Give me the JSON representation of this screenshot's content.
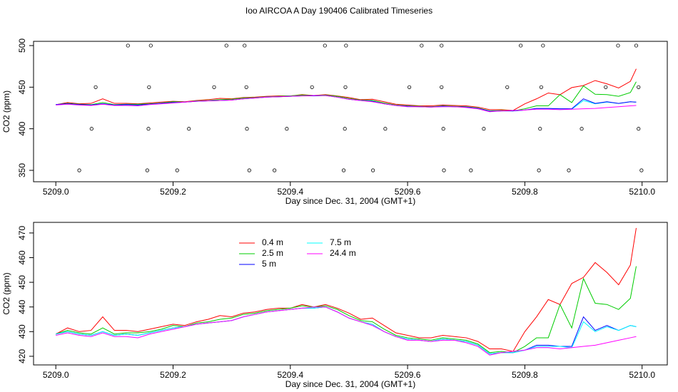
{
  "chart_data": [
    {
      "type": "line",
      "title": "Ioo AIRCOA A  Day 190406  Calibrated Timeseries",
      "xlabel": "Day since Dec. 31, 2004 (GMT+1)",
      "ylabel": "CO2 (ppm)",
      "xlim": [
        5208.962,
        5210.043
      ],
      "ylim": [
        336.3,
        505.1
      ],
      "xticks": [
        {
          "value": 5209,
          "label": "5209.0"
        },
        5209.2,
        5209.4,
        5209.6,
        5209.8,
        {
          "value": 5210,
          "label": "5210.0"
        }
      ],
      "yticks": [
        350,
        400,
        450,
        500
      ],
      "x": [
        5209,
        5209.02,
        5209.04,
        5209.06,
        5209.08,
        5209.1,
        5209.12,
        5209.14,
        5209.16,
        5209.18,
        5209.2,
        5209.22,
        5209.24,
        5209.26,
        5209.28,
        5209.3,
        5209.32,
        5209.34,
        5209.36,
        5209.38,
        5209.4,
        5209.42,
        5209.44,
        5209.46,
        5209.48,
        5209.5,
        5209.52,
        5209.54,
        5209.56,
        5209.58,
        5209.6,
        5209.62,
        5209.64,
        5209.66,
        5209.68,
        5209.7,
        5209.72,
        5209.74,
        5209.76,
        5209.78,
        5209.8,
        5209.82,
        5209.84,
        5209.86,
        5209.88,
        5209.9,
        5209.92,
        5209.94,
        5209.96,
        5209.98,
        5209.99
      ],
      "series": [
        {
          "color": "#ff0000",
          "values": [
            429,
            431.5,
            430,
            430.5,
            436,
            430.5,
            430.5,
            430,
            431,
            432,
            433,
            432.5,
            434,
            435,
            436.5,
            436,
            437.5,
            438,
            439,
            439.5,
            439.5,
            441,
            440,
            441,
            439.5,
            437.5,
            435,
            435.5,
            432.5,
            429.5,
            428.5,
            427.5,
            427.5,
            428.5,
            428,
            427.5,
            426,
            423,
            423,
            422,
            430,
            436,
            443,
            441,
            449.5,
            452,
            458,
            454,
            449,
            457,
            472
          ]
        },
        {
          "color": "#00cc00",
          "values": [
            429,
            430.5,
            429.5,
            429,
            431.5,
            429,
            429.5,
            429.5,
            430,
            431,
            432.5,
            432,
            433.5,
            434,
            435,
            435.5,
            437,
            437.5,
            438.5,
            439,
            439.5,
            440.5,
            440,
            440.5,
            439,
            436.5,
            434.5,
            434,
            431,
            428.5,
            427.5,
            427,
            426.5,
            427.5,
            427,
            426.5,
            425,
            421.5,
            422,
            421.5,
            424,
            427.5,
            427.5,
            441,
            431.5,
            451.5,
            441.5,
            441,
            439,
            443.5,
            456.5
          ]
        },
        {
          "color": "#00ffff",
          "values": [
            429,
            430,
            429,
            428.5,
            430,
            428.5,
            429,
            428.5,
            429.5,
            430.5,
            431.5,
            432,
            433,
            433.5,
            434,
            434.5,
            436,
            437,
            438,
            438.5,
            439,
            439.5,
            439.5,
            440,
            438,
            435.5,
            434,
            433,
            430,
            428,
            427,
            426.5,
            426,
            427,
            426.5,
            426,
            424.5,
            421,
            421.5,
            421.5,
            422.5,
            424,
            424,
            424,
            423.5,
            434,
            430,
            432,
            430.5,
            432.5,
            432
          ]
        },
        {
          "color": "#0000ff",
          "values": [
            429,
            430,
            429,
            428.5,
            430,
            428.5,
            429,
            428.5,
            429.5,
            430.5,
            431.5,
            432,
            433,
            433.5,
            434,
            434.5,
            436,
            437,
            438,
            438.5,
            439,
            439.5,
            439.5,
            440,
            438,
            435.5,
            434,
            433,
            430,
            428,
            427,
            426.5,
            426,
            427,
            426.5,
            426,
            424.5,
            421,
            421.5,
            421.5,
            422.5,
            424.5,
            424.5,
            424,
            424,
            436,
            430.5,
            432.5,
            430.5,
            432.5,
            432
          ]
        },
        {
          "color": "#ff00ff",
          "values": [
            428.5,
            429.5,
            428.5,
            428,
            429.5,
            428,
            428,
            427.5,
            429,
            430,
            431,
            432,
            433,
            433.5,
            434,
            434.5,
            436,
            437,
            438,
            438.5,
            439,
            439.5,
            440,
            440,
            438,
            435.5,
            434,
            432.5,
            430,
            428,
            426.5,
            426.5,
            426,
            426.5,
            426.5,
            425.5,
            424,
            420.5,
            421.5,
            422,
            422.5,
            423.5,
            423.5,
            423,
            423.5,
            424,
            424.5,
            425.5,
            426.5,
            427.5,
            428
          ]
        }
      ],
      "points": {
        "x": [
          5209.123,
          5209.162,
          5209.291,
          5209.322,
          5209.459,
          5209.495,
          5209.624,
          5209.658,
          5209.793,
          5209.831,
          5209.959,
          5209.99,
          5209.068,
          5209.159,
          5209.27,
          5209.325,
          5209.437,
          5209.494,
          5209.603,
          5209.658,
          5209.77,
          5209.828,
          5209.938,
          5209.994,
          5209.061,
          5209.158,
          5209.227,
          5209.326,
          5209.394,
          5209.493,
          5209.562,
          5209.661,
          5209.73,
          5209.826,
          5209.897,
          5209.994,
          5209.04,
          5209.156,
          5209.207,
          5209.33,
          5209.373,
          5209.491,
          5209.541,
          5209.662,
          5209.708,
          5209.824,
          5209.875,
          5209.999
        ],
        "y": [
          500,
          500,
          500,
          500,
          500,
          500,
          500,
          500,
          500,
          500,
          500,
          500,
          450,
          450,
          450,
          450,
          450,
          450,
          450,
          450,
          450,
          450,
          450,
          450,
          400,
          400,
          400,
          400,
          400,
          400,
          400,
          400,
          400,
          400,
          400,
          400,
          350,
          350,
          350,
          350,
          350,
          350,
          350,
          350,
          350,
          350,
          350,
          350
        ]
      }
    },
    {
      "type": "line",
      "xlabel": "Day since Dec. 31, 2004 (GMT+1)",
      "ylabel": "CO2 (ppm)",
      "xlim": [
        5208.962,
        5210.043
      ],
      "ylim": [
        416.5,
        474.3
      ],
      "xticks": [
        {
          "value": 5209,
          "label": "5209.0"
        },
        5209.2,
        5209.4,
        5209.6,
        5209.8,
        {
          "value": 5210,
          "label": "5210.0"
        }
      ],
      "yticks": [
        420,
        430,
        440,
        450,
        460,
        470
      ],
      "x": [
        5209,
        5209.02,
        5209.04,
        5209.06,
        5209.08,
        5209.1,
        5209.12,
        5209.14,
        5209.16,
        5209.18,
        5209.2,
        5209.22,
        5209.24,
        5209.26,
        5209.28,
        5209.3,
        5209.32,
        5209.34,
        5209.36,
        5209.38,
        5209.4,
        5209.42,
        5209.44,
        5209.46,
        5209.48,
        5209.5,
        5209.52,
        5209.54,
        5209.56,
        5209.58,
        5209.6,
        5209.62,
        5209.64,
        5209.66,
        5209.68,
        5209.7,
        5209.72,
        5209.74,
        5209.76,
        5209.78,
        5209.8,
        5209.82,
        5209.84,
        5209.86,
        5209.88,
        5209.9,
        5209.92,
        5209.94,
        5209.96,
        5209.98,
        5209.99
      ],
      "series": [
        {
          "name": "0.4 m",
          "color": "#ff0000",
          "values": [
            429,
            431.5,
            430,
            430.5,
            436,
            430.5,
            430.5,
            430,
            431,
            432,
            433,
            432.5,
            434,
            435,
            436.5,
            436,
            437.5,
            438,
            439,
            439.5,
            439.5,
            441,
            440,
            441,
            439.5,
            437.5,
            435,
            435.5,
            432.5,
            429.5,
            428.5,
            427.5,
            427.5,
            428.5,
            428,
            427.5,
            426,
            423,
            423,
            422,
            430,
            436,
            443,
            441,
            449.5,
            452,
            458,
            454,
            449,
            457,
            472
          ]
        },
        {
          "name": "2.5 m",
          "color": "#00cc00",
          "values": [
            429,
            430.5,
            429.5,
            429,
            431.5,
            429,
            429.5,
            429.5,
            430,
            431,
            432.5,
            432,
            433.5,
            434,
            435,
            435.5,
            437,
            437.5,
            438.5,
            439,
            439.5,
            440.5,
            440,
            440.5,
            439,
            436.5,
            434.5,
            434,
            431,
            428.5,
            427.5,
            427,
            426.5,
            427.5,
            427,
            426.5,
            425,
            421.5,
            422,
            421.5,
            424,
            427.5,
            427.5,
            441,
            431.5,
            451.5,
            441.5,
            441,
            439,
            443.5,
            456.5
          ]
        },
        {
          "name": "5 m",
          "color": "#0000ff",
          "values": [
            429,
            430,
            429,
            428.5,
            430,
            428.5,
            429,
            428.5,
            429.5,
            430.5,
            431.5,
            432,
            433,
            433.5,
            434,
            434.5,
            436,
            437,
            438,
            438.5,
            439,
            439.5,
            439.5,
            440,
            438,
            435.5,
            434,
            433,
            430,
            428,
            427,
            426.5,
            426,
            427,
            426.5,
            426,
            424.5,
            421,
            421.5,
            421.5,
            422.5,
            424.5,
            424.5,
            424,
            424,
            436,
            430.5,
            432.5,
            430.5,
            432.5,
            432
          ]
        },
        {
          "name": "7.5 m",
          "color": "#00ffff",
          "values": [
            429,
            430,
            429,
            428.5,
            430,
            428.5,
            429,
            428.5,
            429.5,
            430.5,
            431.5,
            432,
            433,
            433.5,
            434,
            434.5,
            436,
            437,
            438,
            438.5,
            439,
            439.5,
            439.5,
            440,
            438,
            435.5,
            434,
            433,
            430,
            428,
            427,
            426.5,
            426,
            427,
            426.5,
            426,
            424.5,
            421,
            421.5,
            421.5,
            422.5,
            424,
            424,
            424,
            423.5,
            434,
            430,
            432,
            430.5,
            432.5,
            432
          ]
        },
        {
          "name": "24.4 m",
          "color": "#ff00ff",
          "values": [
            428.5,
            429.5,
            428.5,
            428,
            429.5,
            428,
            428,
            427.5,
            429,
            430,
            431,
            432,
            433,
            433.5,
            434,
            434.5,
            436,
            437,
            438,
            438.5,
            439,
            439.5,
            440,
            440,
            438,
            435.5,
            434,
            432.5,
            430,
            428,
            426.5,
            426.5,
            426,
            426.5,
            426.5,
            425.5,
            424,
            420.5,
            421.5,
            422,
            422.5,
            423.5,
            423.5,
            423,
            423.5,
            424,
            424.5,
            425.5,
            426.5,
            427.5,
            428
          ]
        }
      ]
    }
  ]
}
